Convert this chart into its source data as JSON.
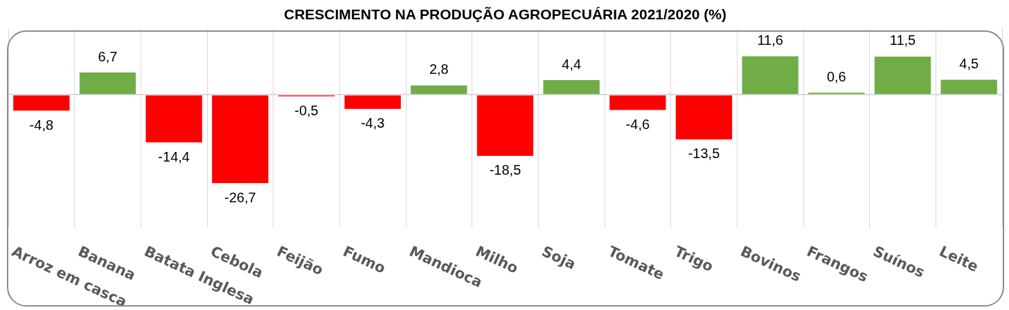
{
  "chart_data": {
    "type": "bar",
    "title": "CRESCIMENTO NA PRODUÇÃO AGROPECUÁRIA 2021/2020 (%)",
    "categories": [
      "Arroz em casca",
      "Banana",
      "Batata Inglesa",
      "Cebola",
      "Feijão",
      "Fumo",
      "Mandioca",
      "Milho",
      "Soja",
      "Tomate",
      "Trigo",
      "Bovinos",
      "Frangos",
      "Suínos",
      "Leite"
    ],
    "values": [
      -4.8,
      6.7,
      -14.4,
      -26.7,
      -0.5,
      -4.3,
      2.8,
      -18.5,
      4.4,
      -4.6,
      -13.5,
      11.6,
      0.6,
      11.5,
      4.5
    ],
    "value_labels": [
      "-4,8",
      "6,7",
      "-14,4",
      "-26,7",
      "-0,5",
      "-4,3",
      "2,8",
      "-18,5",
      "4,4",
      "-4,6",
      "-13,5",
      "11,6",
      "0,6",
      "11,5",
      "4,5"
    ],
    "colors": [
      "#ff0000",
      "#70ad47",
      "#ff0000",
      "#ff0000",
      "#ff0000",
      "#ff0000",
      "#70ad47",
      "#ff0000",
      "#70ad47",
      "#ff0000",
      "#ff0000",
      "#70ad47",
      "#70ad47",
      "#70ad47",
      "#70ad47"
    ],
    "tick_labels": "x",
    "grid": "x"
  }
}
